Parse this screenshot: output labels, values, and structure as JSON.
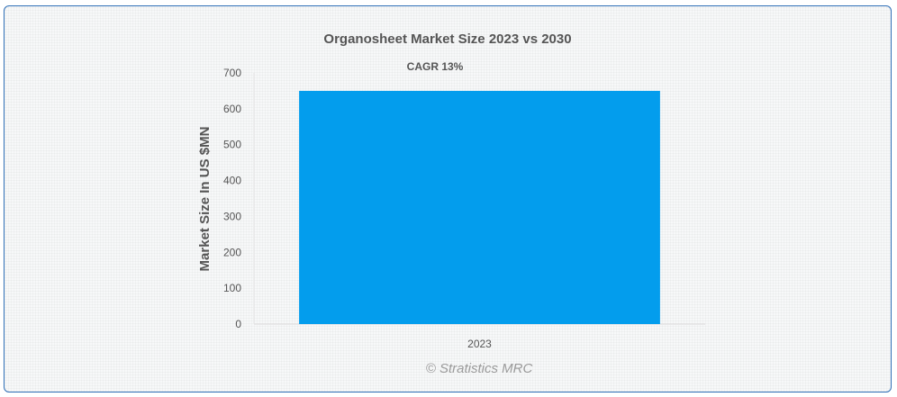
{
  "chart_data": {
    "type": "bar",
    "title": "Organosheet Market Size 2023 vs 2030",
    "annotation": "CAGR 13%",
    "xlabel": "",
    "ylabel": "Market Size In US $MN",
    "categories": [
      "2023"
    ],
    "values": [
      650
    ],
    "ylim": [
      0,
      700
    ],
    "yticks": [
      0,
      100,
      200,
      300,
      400,
      500,
      600,
      700
    ],
    "bar_color": "#039ded",
    "grid": false,
    "credit": "© Stratistics MRC"
  }
}
